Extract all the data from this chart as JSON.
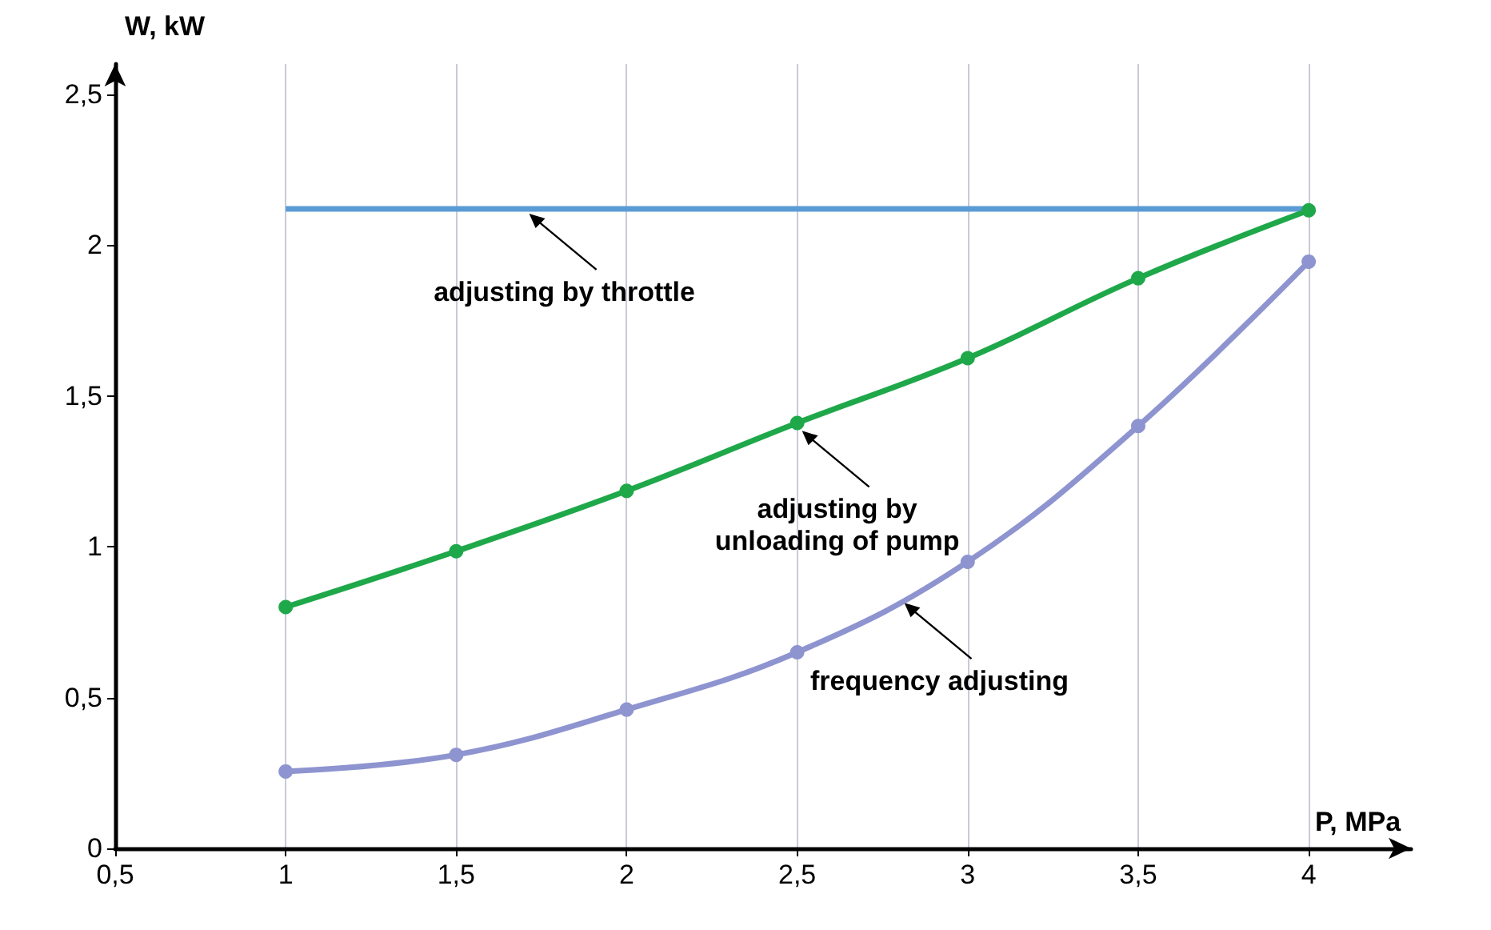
{
  "chart_data": {
    "type": "line",
    "xlabel": "P, MPa",
    "ylabel": "W, kW",
    "x": [
      1,
      1.5,
      2,
      2.5,
      3,
      3.5,
      4
    ],
    "series": [
      {
        "color": "#5b9bd5",
        "marker": "none",
        "values": [
          2.12,
          2.12,
          2.12,
          2.12,
          2.12,
          2.12,
          2.12
        ]
      },
      {
        "color": "#1fa84a",
        "values": [
          0.8,
          0.985,
          1.185,
          1.41,
          1.625,
          1.89,
          2.115
        ]
      },
      {
        "color": "#8e94cf",
        "values": [
          0.255,
          0.31,
          0.46,
          0.65,
          0.95,
          1.4,
          1.945
        ]
      }
    ],
    "xlim": [
      0.5,
      4.3
    ],
    "ylim": [
      0,
      2.6
    ],
    "xticks": [
      {
        "value": 0.5,
        "label": "0,5"
      },
      1,
      {
        "value": 1.5,
        "label": "1,5"
      },
      2,
      {
        "value": 2.5,
        "label": "2,5"
      },
      3,
      {
        "value": 3.5,
        "label": "3,5"
      },
      4
    ],
    "yticks": [
      0,
      {
        "value": 0.5,
        "label": "0,5"
      },
      1,
      {
        "value": 1.5,
        "label": "1,5"
      },
      2,
      {
        "value": 2.5,
        "label": "2,5"
      }
    ],
    "grid": "x",
    "marker": "circle",
    "line_style": "solid",
    "annotations": [
      {
        "text": "adjusting by throttle",
        "x": 1.7,
        "y": 2.12
      },
      {
        "text": "adjusting by\nunloading of pump",
        "x": 2.5,
        "y": 1.4
      },
      {
        "text": "frequency adjusting",
        "x": 2.8,
        "y": 0.83
      }
    ]
  }
}
